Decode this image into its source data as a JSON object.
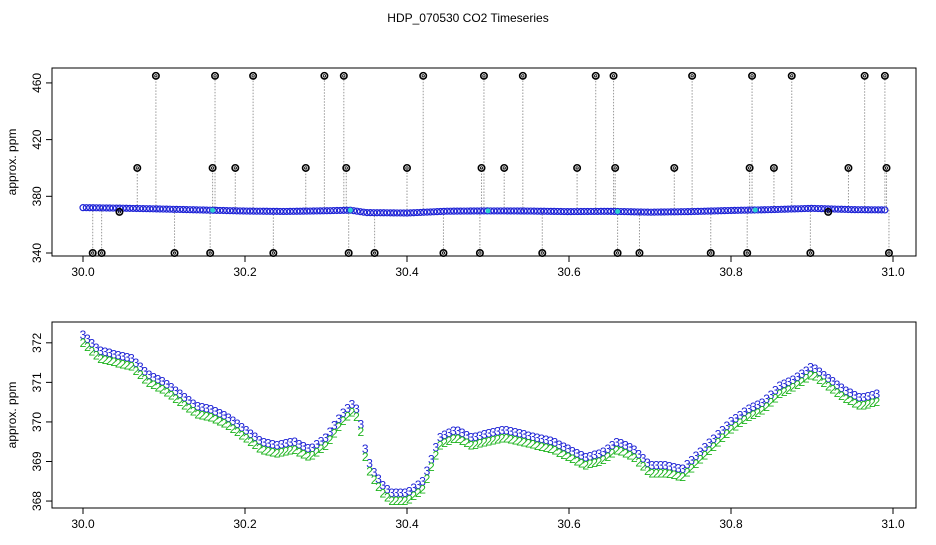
{
  "title": "HDP_070530  CO2 Timeseries",
  "colors": {
    "background": "#ffffff",
    "axis": "#000000",
    "outlier": "#000000",
    "drop_line": "#9a9a9a",
    "series_blue": "#1f24d6",
    "series_green": "#1fb41f",
    "highlight": "#2bd0d0"
  },
  "chart_data": [
    {
      "type": "scatter",
      "title": "HDP_070530  CO2 Timeseries",
      "xlabel": "",
      "ylabel": "approx. ppm",
      "xlim": [
        30.0,
        31.0
      ],
      "ylim": [
        340,
        467
      ],
      "xticks": [
        "30.0",
        "30.2",
        "30.4",
        "30.6",
        "30.8",
        "31.0"
      ],
      "yticks": [
        "340",
        "380",
        "420",
        "460"
      ],
      "baseline_series": {
        "name": "",
        "x": [
          30.0,
          30.05,
          30.1,
          30.15,
          30.2,
          30.25,
          30.3,
          30.33,
          30.35,
          30.4,
          30.45,
          30.5,
          30.55,
          30.6,
          30.65,
          30.7,
          30.75,
          30.8,
          30.85,
          30.9,
          30.95,
          30.99
        ],
        "y": [
          372,
          371.6,
          371,
          370.3,
          369.6,
          369.3,
          369.8,
          370.2,
          368.5,
          368.2,
          369.5,
          369.7,
          369.6,
          369.2,
          369.4,
          368.8,
          369.2,
          370.0,
          370.6,
          371.5,
          370.6,
          370.4
        ]
      },
      "outliers": {
        "x": [
          30.012,
          30.023,
          30.045,
          30.067,
          30.09,
          30.113,
          30.157,
          30.16,
          30.163,
          30.188,
          30.21,
          30.235,
          30.275,
          30.298,
          30.322,
          30.325,
          30.328,
          30.36,
          30.4,
          30.42,
          30.445,
          30.49,
          30.492,
          30.495,
          30.52,
          30.543,
          30.567,
          30.61,
          30.633,
          30.655,
          30.657,
          30.66,
          30.687,
          30.73,
          30.752,
          30.775,
          30.82,
          30.823,
          30.826,
          30.853,
          30.875,
          30.898,
          30.92,
          30.945,
          30.965,
          30.99,
          30.992,
          30.995
        ],
        "y": [
          340,
          340,
          369,
          400,
          465,
          340,
          340,
          400,
          465,
          400,
          465,
          340,
          400,
          465,
          465,
          400,
          340,
          340,
          400,
          465,
          340,
          340,
          400,
          465,
          400,
          465,
          340,
          400,
          465,
          465,
          400,
          340,
          340,
          400,
          465,
          340,
          340,
          400,
          465,
          400,
          465,
          340,
          369,
          400,
          465,
          465,
          400,
          340
        ]
      }
    },
    {
      "type": "scatter",
      "title": "",
      "xlabel": "",
      "ylabel": "approx. ppm",
      "xlim": [
        30.0,
        31.0
      ],
      "ylim": [
        367.9,
        372.4
      ],
      "xticks": [
        "30.0",
        "30.2",
        "30.4",
        "30.6",
        "30.8",
        "31.0"
      ],
      "yticks": [
        "368",
        "369",
        "370",
        "371",
        "372"
      ],
      "marker_labels": [
        "3",
        "2"
      ],
      "series": [
        {
          "name": "",
          "marker": "3",
          "x": [
            30.0,
            30.02,
            30.04,
            30.06,
            30.08,
            30.1,
            30.12,
            30.14,
            30.16,
            30.18,
            30.2,
            30.22,
            30.24,
            30.26,
            30.28,
            30.3,
            30.32,
            30.335,
            30.345,
            30.35,
            30.36,
            30.37,
            30.38,
            30.4,
            30.42,
            30.44,
            30.46,
            30.48,
            30.5,
            30.52,
            30.54,
            30.56,
            30.58,
            30.6,
            30.62,
            30.64,
            30.66,
            30.68,
            30.7,
            30.72,
            30.74,
            30.76,
            30.78,
            30.8,
            30.82,
            30.84,
            30.86,
            30.88,
            30.9,
            30.92,
            30.94,
            30.96,
            30.98
          ],
          "y": [
            372.2,
            371.8,
            371.7,
            371.6,
            371.2,
            371.0,
            370.7,
            370.4,
            370.3,
            370.1,
            369.8,
            369.5,
            369.4,
            369.5,
            369.3,
            369.6,
            370.2,
            370.5,
            369.8,
            369.1,
            368.7,
            368.4,
            368.2,
            368.2,
            368.5,
            369.6,
            369.8,
            369.6,
            369.7,
            369.8,
            369.7,
            369.6,
            369.5,
            369.3,
            369.1,
            369.2,
            369.5,
            369.3,
            368.9,
            368.9,
            368.8,
            369.2,
            369.6,
            370.0,
            370.3,
            370.5,
            370.9,
            371.1,
            371.4,
            371.1,
            370.8,
            370.6,
            370.7
          ]
        },
        {
          "name": "",
          "marker": "2",
          "x": [
            30.0,
            30.02,
            30.04,
            30.06,
            30.08,
            30.1,
            30.12,
            30.14,
            30.16,
            30.18,
            30.2,
            30.22,
            30.24,
            30.26,
            30.28,
            30.3,
            30.32,
            30.335,
            30.345,
            30.35,
            30.36,
            30.37,
            30.38,
            30.4,
            30.42,
            30.44,
            30.46,
            30.48,
            30.5,
            30.52,
            30.54,
            30.56,
            30.58,
            30.6,
            30.62,
            30.64,
            30.66,
            30.68,
            30.7,
            30.72,
            30.74,
            30.76,
            30.78,
            30.8,
            30.82,
            30.84,
            30.86,
            30.88,
            30.9,
            30.92,
            30.94,
            30.96,
            30.98
          ],
          "y": [
            372.0,
            371.6,
            371.5,
            371.4,
            371.0,
            370.8,
            370.5,
            370.2,
            370.1,
            369.9,
            369.6,
            369.3,
            369.2,
            369.3,
            369.1,
            369.4,
            370.0,
            370.3,
            369.6,
            368.9,
            368.5,
            368.2,
            368.0,
            368.0,
            368.3,
            369.4,
            369.6,
            369.4,
            369.5,
            369.6,
            369.5,
            369.4,
            369.3,
            369.1,
            368.9,
            369.0,
            369.3,
            369.1,
            368.7,
            368.7,
            368.6,
            369.0,
            369.4,
            369.8,
            370.1,
            370.3,
            370.7,
            370.9,
            371.2,
            370.9,
            370.6,
            370.4,
            370.5
          ]
        }
      ]
    }
  ]
}
